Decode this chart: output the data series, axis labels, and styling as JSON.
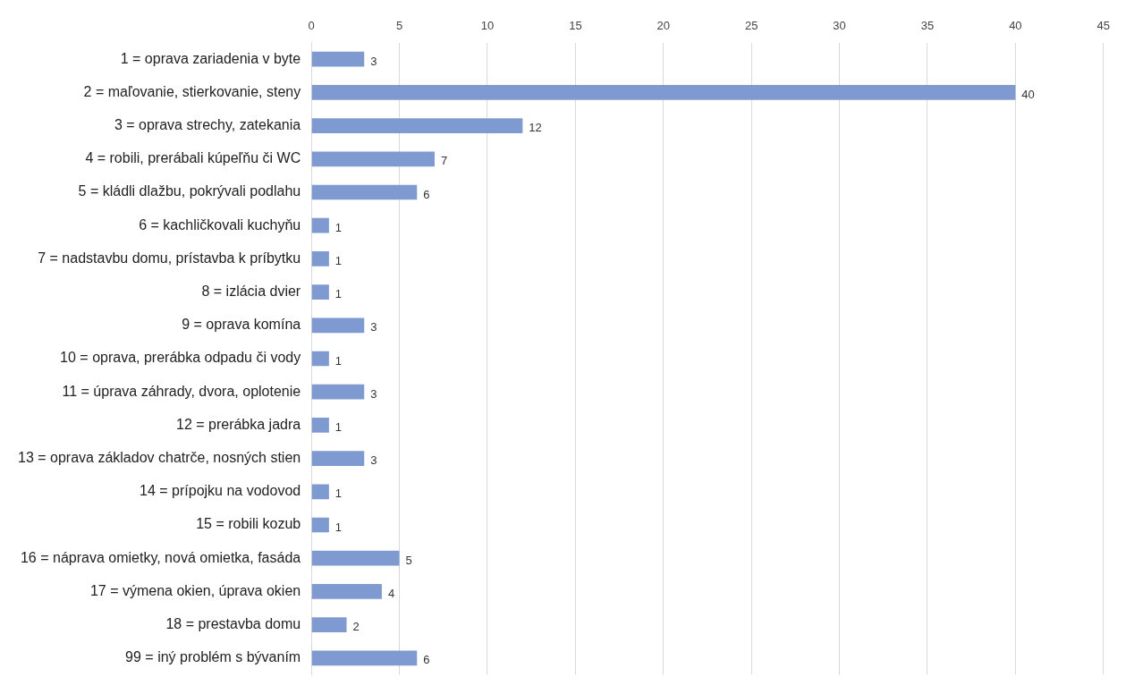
{
  "chart_data": {
    "type": "bar",
    "orientation": "horizontal",
    "categories": [
      "1 = oprava zariadenia v byte",
      "2 = maľovanie, stierkovanie, steny",
      "3 = oprava strechy, zatekania",
      "4 = robili, prerábali kúpeľňu či WC",
      "5 = kládli dlažbu, pokrývali podlahu",
      "6 = kachličkovali kuchyňu",
      "7 = nadstavbu domu, prístavba k príbytku",
      "8 = izlácia dvier",
      "9 = oprava komína",
      "10 = oprava, prerábka odpadu či vody",
      "11 = úprava záhrady, dvora, oplotenie",
      "12 = prerábka jadra",
      "13 = oprava základov chatrče, nosných stien",
      "14 = prípojku na vodovod",
      "15 = robili kozub",
      "16 = náprava omietky, nová omietka, fasáda",
      "17 = výmena okien, úprava okien",
      "18 = prestavba domu",
      "99 = iný problém s bývaním"
    ],
    "values": [
      3,
      40,
      12,
      7,
      6,
      1,
      1,
      1,
      3,
      1,
      3,
      1,
      3,
      1,
      1,
      5,
      4,
      2,
      6
    ],
    "color": "#7f9ad0",
    "xlim": [
      0,
      45
    ],
    "xticks": [
      0,
      5,
      10,
      15,
      20,
      25,
      30,
      35,
      40,
      45
    ],
    "grid": "x",
    "legend": false,
    "data_labels": true
  }
}
